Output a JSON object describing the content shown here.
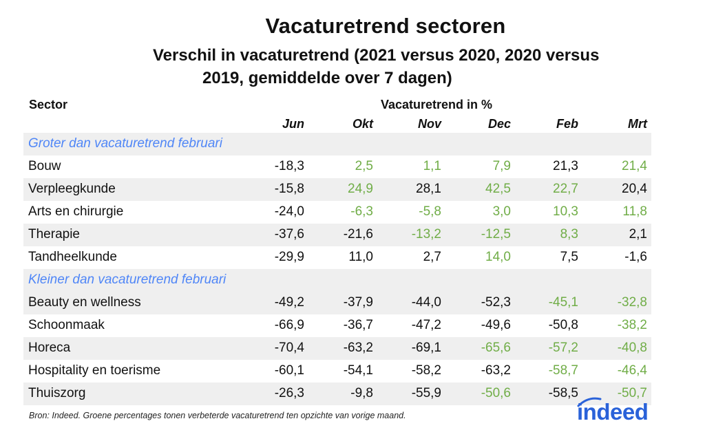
{
  "title": "Vacaturetrend sectoren",
  "subtitle": {
    "line1": "Verschil in vacaturetrend (2021 versus 2020, 2020 versus",
    "line2": "2019, gemiddelde over 7 dagen)"
  },
  "table": {
    "sector_header": "Sector",
    "trend_header": "Vacaturetrend in %",
    "months": [
      "Jun",
      "Okt",
      "Nov",
      "Dec",
      "Feb",
      "Mrt"
    ],
    "colors": {
      "green": "#70ad47",
      "group_blue": "#4f86f7",
      "shade": "#efefef"
    },
    "rows": [
      {
        "type": "group",
        "name": "Groter dan vacaturetrend februari"
      },
      {
        "name": "Bouw",
        "values": [
          "-18,3",
          "2,5",
          "1,1",
          "7,9",
          "21,3",
          "21,4"
        ],
        "green": [
          false,
          true,
          true,
          true,
          false,
          true
        ]
      },
      {
        "name": "Verpleegkunde",
        "values": [
          "-15,8",
          "24,9",
          "28,1",
          "42,5",
          "22,7",
          "20,4"
        ],
        "green": [
          false,
          true,
          false,
          true,
          true,
          false
        ]
      },
      {
        "name": "Arts en chirurgie",
        "values": [
          "-24,0",
          "-6,3",
          "-5,8",
          "3,0",
          "10,3",
          "11,8"
        ],
        "green": [
          false,
          true,
          true,
          true,
          true,
          true
        ]
      },
      {
        "name": "Therapie",
        "values": [
          "-37,6",
          "-21,6",
          "-13,2",
          "-12,5",
          "8,3",
          "2,1"
        ],
        "green": [
          false,
          false,
          true,
          true,
          true,
          false
        ]
      },
      {
        "name": "Tandheelkunde",
        "values": [
          "-29,9",
          "11,0",
          "2,7",
          "14,0",
          "7,5",
          "-1,6"
        ],
        "green": [
          false,
          false,
          false,
          true,
          false,
          false
        ]
      },
      {
        "type": "group",
        "name": "Kleiner dan vacaturetrend februari"
      },
      {
        "name": "Beauty en wellness",
        "values": [
          "-49,2",
          "-37,9",
          "-44,0",
          "-52,3",
          "-45,1",
          "-32,8"
        ],
        "green": [
          false,
          false,
          false,
          false,
          true,
          true
        ]
      },
      {
        "name": "Schoonmaak",
        "values": [
          "-66,9",
          "-36,7",
          "-47,2",
          "-49,6",
          "-50,8",
          "-38,2"
        ],
        "green": [
          false,
          false,
          false,
          false,
          false,
          true
        ]
      },
      {
        "name": "Horeca",
        "values": [
          "-70,4",
          "-63,2",
          "-69,1",
          "-65,6",
          "-57,2",
          "-40,8"
        ],
        "green": [
          false,
          false,
          false,
          true,
          true,
          true
        ]
      },
      {
        "name": "Hospitality en toerisme",
        "values": [
          "-60,1",
          "-54,1",
          "-58,2",
          "-63,2",
          "-58,7",
          "-46,4"
        ],
        "green": [
          false,
          false,
          false,
          false,
          true,
          true
        ]
      },
      {
        "name": "Thuiszorg",
        "values": [
          "-26,3",
          "-9,8",
          "-55,9",
          "-50,6",
          "-58,5",
          "-50,7"
        ],
        "green": [
          false,
          false,
          false,
          true,
          false,
          true
        ]
      }
    ]
  },
  "source": "Bron: Indeed. Groene percentages tonen verbeterde vacaturetrend ten opzichte van vorige maand.",
  "logo": {
    "text": "indeed",
    "color": "#2a62d9"
  }
}
